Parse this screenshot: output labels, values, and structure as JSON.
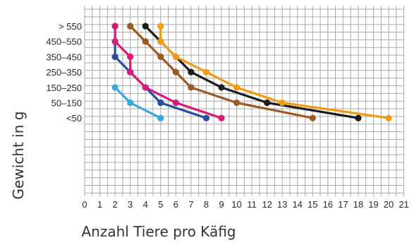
{
  "chart_data": {
    "type": "line",
    "xlabel": "Anzahl Tiere pro Käfig",
    "ylabel": "Gewicht in g",
    "x_ticks": [
      "0",
      "1",
      "2",
      "3",
      "4",
      "5",
      "6",
      "7",
      "8",
      "9",
      "10",
      "11",
      "12",
      "13",
      "14",
      "15",
      "16",
      "17",
      "18",
      "19",
      "20",
      "21"
    ],
    "xlim": [
      0,
      21
    ],
    "categories": [
      "<50",
      "50–150",
      "150–250",
      "250–350",
      "350–450",
      "450–550",
      ">550"
    ],
    "category_labels": [
      "<50",
      "50–150",
      "150–250",
      "250–350",
      "350–450",
      "450–550",
      "> 550"
    ],
    "grid": true,
    "series": [
      {
        "color": "#35a8dc",
        "points": [
          [
            2,
            "150–250"
          ],
          [
            3,
            "50–150"
          ],
          [
            5,
            "<50"
          ]
        ]
      },
      {
        "color": "#2b4d9b",
        "points": [
          [
            2,
            "350–450"
          ],
          [
            2,
            "450–550"
          ],
          [
            2,
            ">550"
          ],
          [
            2,
            "350–450"
          ],
          [
            3,
            "250–350"
          ],
          [
            4,
            "150–250"
          ],
          [
            5,
            "50–150"
          ],
          [
            8,
            "<50"
          ]
        ]
      },
      {
        "color": "#d81b7a",
        "points": [
          [
            2,
            ">550"
          ],
          [
            2,
            "450–550"
          ],
          [
            3,
            "350–450"
          ],
          [
            3,
            "250–350"
          ],
          [
            4,
            "150–250"
          ],
          [
            6,
            "50–150"
          ],
          [
            9,
            "<50"
          ]
        ]
      },
      {
        "color": "#9a5a24",
        "points": [
          [
            3,
            ">550"
          ],
          [
            4,
            "450–550"
          ],
          [
            5,
            "350–450"
          ],
          [
            6,
            "250–350"
          ],
          [
            7,
            "150–250"
          ],
          [
            10,
            "50–150"
          ],
          [
            15,
            "<50"
          ]
        ]
      },
      {
        "color": "#1c1c1c",
        "points": [
          [
            4,
            ">550"
          ],
          [
            5,
            "450–550"
          ],
          [
            6,
            "350–450"
          ],
          [
            7,
            "250–350"
          ],
          [
            9,
            "150–250"
          ],
          [
            12,
            "50–150"
          ],
          [
            18,
            "<50"
          ]
        ]
      },
      {
        "color": "#f39a13",
        "points": [
          [
            5,
            ">550"
          ],
          [
            5,
            "450–550"
          ],
          [
            6,
            "350–450"
          ],
          [
            8,
            "250–350"
          ],
          [
            10,
            "150–250"
          ],
          [
            13,
            "50–150"
          ],
          [
            20,
            "<50"
          ]
        ]
      }
    ]
  }
}
